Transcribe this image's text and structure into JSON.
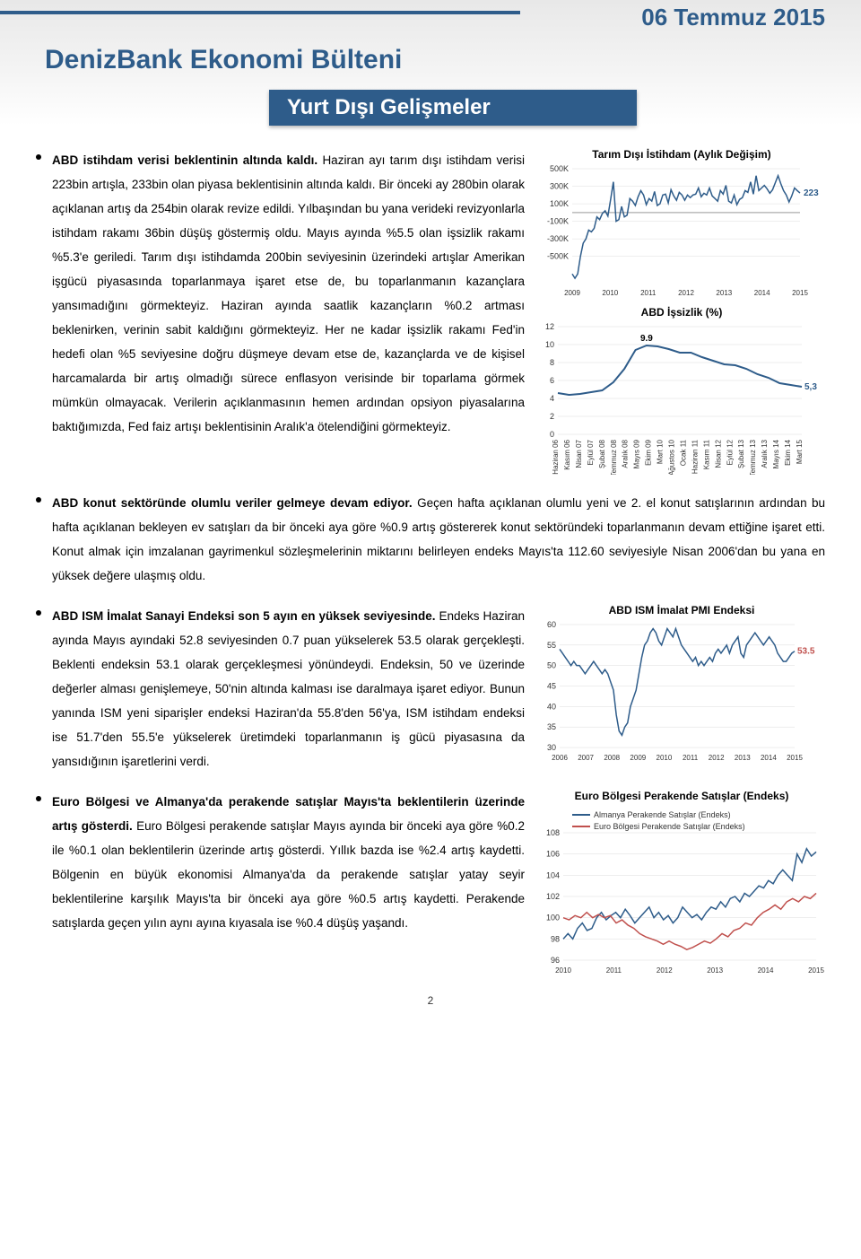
{
  "header": {
    "date": "06 Temmuz 2015",
    "title": "DenizBank Ekonomi Bülteni",
    "subtitle": "Yurt Dışı Gelişmeler"
  },
  "sections": [
    {
      "lead": "ABD istihdam verisi beklentinin altında kaldı.",
      "body": "Haziran ayı tarım dışı istihdam verisi 223bin artışla, 233bin olan piyasa beklentisinin altında kaldı. Bir önceki ay 280bin olarak açıklanan artış da 254bin olarak revize edildi. Yılbaşından bu yana verideki revizyonlarla istihdam rakamı 36bin düşüş göstermiş oldu. Mayıs ayında %5.5 olan işsizlik rakamı %5.3'e geriledi. Tarım dışı istihdamda 200bin seviyesinin üzerindeki artışlar Amerikan işgücü piyasasında toparlanmaya işaret etse de, bu toparlanmanın kazançlara yansımadığını görmekteyiz. Haziran ayında saatlik kazançların %0.2 artması beklenirken, verinin sabit kaldığını görmekteyiz. Her ne kadar işsizlik rakamı Fed'in hedefi olan %5 seviyesine doğru düşmeye devam etse de, kazançlarda ve de kişisel harcamalarda bir artış olmadığı sürece enflasyon verisinde bir toparlama görmek mümkün olmayacak. Verilerin açıklanmasının hemen ardından opsiyon piyasalarına baktığımızda, Fed faiz artışı beklentisinin Aralık'a ötelendiğini görmekteyiz."
    },
    {
      "lead": "ABD konut sektöründe olumlu veriler gelmeye devam ediyor.",
      "body": "Geçen hafta açıklanan olumlu yeni ve 2. el konut satışlarının ardından bu hafta açıklanan bekleyen ev satışları da bir önceki aya göre %0.9 artış göstererek konut sektöründeki toparlanmanın devam ettiğine işaret etti. Konut almak için imzalanan gayrimenkul sözleşmelerinin miktarını belirleyen endeks Mayıs'ta 112.60 seviyesiyle Nisan 2006'dan bu yana en yüksek değere ulaşmış oldu."
    },
    {
      "lead": "ABD ISM İmalat Sanayi Endeksi son 5 ayın en yüksek seviyesinde.",
      "body": "Endeks Haziran ayında Mayıs ayındaki 52.8 seviyesinden 0.7 puan yükselerek 53.5 olarak gerçekleşti. Beklenti endeksin 53.1 olarak gerçekleşmesi yönündeydi. Endeksin, 50 ve üzerinde değerler alması genişlemeye, 50'nin altında kalması ise daralmaya işaret ediyor. Bunun yanında ISM yeni siparişler endeksi Haziran'da 55.8'den 56'ya, ISM istihdam endeksi ise 51.7'den 55.5'e yükselerek üretimdeki toparlanmanın iş gücü piyasasına da yansıdığının işaretlerini verdi."
    },
    {
      "lead": "Euro Bölgesi ve Almanya'da perakende satışlar Mayıs'ta beklentilerin üzerinde artış gösterdi.",
      "body": "Euro Bölgesi perakende satışlar Mayıs ayında bir önceki aya göre %0.2 ile %0.1 olan beklentilerin üzerinde artış gösterdi. Yıllık bazda ise %2.4 artış kaydetti. Bölgenin en büyük ekonomisi Almanya'da da perakende satışlar yatay seyir beklentilerine karşılık Mayıs'ta bir önceki aya göre %0.5 artış kaydetti. Perakende satışlarda geçen yılın aynı ayına kıyasala ise %0.4 düşüş yaşandı."
    }
  ],
  "charts": {
    "employment": {
      "title": "Tarım Dışı İstihdam (Aylık Değişim)",
      "y_ticks": [
        "500K",
        "300K",
        "100K",
        "-100K",
        "-300K",
        "-500K"
      ],
      "x_ticks": [
        "2009",
        "2010",
        "2011",
        "2012",
        "2013",
        "2014",
        "2015"
      ],
      "end_label": "223",
      "line_color": "#2e5c8a",
      "data": [
        -700,
        -750,
        -700,
        -500,
        -350,
        -300,
        -200,
        -220,
        -180,
        -50,
        -80,
        -10,
        20,
        -40,
        150,
        350,
        -100,
        -80,
        70,
        -50,
        -30,
        160,
        130,
        80,
        180,
        250,
        200,
        90,
        160,
        130,
        240,
        80,
        100,
        200,
        210,
        110,
        260,
        190,
        140,
        230,
        200,
        140,
        200,
        170,
        200,
        210,
        280,
        180,
        220,
        200,
        280,
        190,
        160,
        130,
        250,
        210,
        310,
        130,
        110,
        200,
        90,
        150,
        170,
        250,
        230,
        350,
        210,
        420,
        250,
        280,
        310,
        270,
        220,
        260,
        340,
        420,
        330,
        250,
        200,
        120,
        190,
        280,
        250,
        223
      ]
    },
    "unemployment": {
      "title": "ABD İşsizlik (%)",
      "y_ticks": [
        "12",
        "10",
        "8",
        "6",
        "4",
        "2",
        "0"
      ],
      "peak_label": "9.9",
      "end_label": "5,3",
      "line_color": "#2e5c8a",
      "x_labels": [
        "Haziran 06",
        "Kasım 06",
        "Nisan 07",
        "Eylül 07",
        "Şubat 08",
        "Temmuz 08",
        "Aralık 08",
        "Mayıs 09",
        "Ekim 09",
        "Mart 10",
        "Ağustos 10",
        "Ocak 11",
        "Haziran 11",
        "Kasım 11",
        "Nisan 12",
        "Eylül 12",
        "Şubat 13",
        "Temmuz 13",
        "Aralık 13",
        "Mayıs 14",
        "Ekim 14",
        "Mart 15"
      ],
      "data": [
        4.6,
        4.4,
        4.5,
        4.7,
        4.9,
        5.8,
        7.3,
        9.4,
        9.9,
        9.8,
        9.5,
        9.1,
        9.1,
        8.6,
        8.2,
        7.8,
        7.7,
        7.3,
        6.7,
        6.3,
        5.7,
        5.5,
        5.3
      ]
    },
    "ism": {
      "title": "ABD ISM İmalat PMI Endeksi",
      "y_ticks": [
        "60",
        "55",
        "50",
        "45",
        "40",
        "35",
        "30"
      ],
      "x_ticks": [
        "2006",
        "2007",
        "2008",
        "2009",
        "2010",
        "2011",
        "2012",
        "2013",
        "2014",
        "2015"
      ],
      "end_label": "53.5",
      "line_color": "#2e5c8a",
      "data": [
        54,
        53,
        52,
        51,
        50,
        51,
        50,
        50,
        49,
        48,
        49,
        50,
        51,
        50,
        49,
        48,
        49,
        48,
        46,
        44,
        38,
        34,
        33,
        35,
        36,
        40,
        42,
        44,
        48,
        52,
        55,
        56,
        58,
        59,
        58,
        56,
        55,
        57,
        59,
        58,
        57,
        59,
        57,
        55,
        54,
        53,
        52,
        51,
        52,
        50,
        51,
        50,
        51,
        52,
        51,
        53,
        54,
        53,
        54,
        55,
        53,
        55,
        56,
        57,
        53,
        52,
        55,
        56,
        57,
        58,
        57,
        56,
        55,
        56,
        57,
        56,
        55,
        53,
        52,
        51,
        51,
        52,
        53,
        53.5
      ]
    },
    "retail": {
      "title": "Euro Bölgesi Perakende Satışlar (Endeks)",
      "y_ticks": [
        "108",
        "106",
        "104",
        "102",
        "100",
        "98",
        "96"
      ],
      "x_ticks": [
        "2010",
        "2011",
        "2012",
        "2013",
        "2014",
        "2015"
      ],
      "legend": [
        "Almanya Perakende Satışlar (Endeks)",
        "Euro Bölgesi Perakende Satışlar (Endeks)"
      ],
      "colors": [
        "#2e5c8a",
        "#c0504d"
      ],
      "data_germany": [
        98,
        98.5,
        98,
        99,
        99.5,
        98.8,
        99,
        100,
        100.5,
        99.8,
        100.2,
        100.5,
        100,
        100.8,
        100.2,
        99.5,
        100,
        100.5,
        101,
        100,
        100.5,
        99.8,
        100.2,
        99.5,
        100,
        101,
        100.5,
        100,
        100.3,
        99.8,
        100.5,
        101,
        100.8,
        101.5,
        101,
        101.8,
        102,
        101.5,
        102.3,
        102,
        102.5,
        103,
        102.8,
        103.5,
        103.2,
        104,
        104.5,
        104,
        103.5,
        106,
        105.2,
        106.5,
        105.8,
        106.2
      ],
      "data_euro": [
        100,
        99.8,
        100.2,
        100,
        100.5,
        100,
        100.3,
        100,
        100.2,
        99.5,
        99.8,
        99.3,
        99,
        98.5,
        98.2,
        98,
        97.8,
        97.5,
        97.8,
        97.5,
        97.3,
        97,
        97.2,
        97.5,
        97.8,
        97.6,
        98,
        98.5,
        98.2,
        98.8,
        99,
        99.5,
        99.3,
        100,
        100.5,
        100.8,
        101.2,
        100.8,
        101.5,
        101.8,
        101.5,
        102,
        101.8,
        102.3
      ]
    }
  },
  "page_number": "2"
}
